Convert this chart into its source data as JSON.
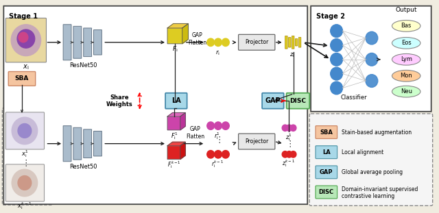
{
  "stage1_label": "Stage 1",
  "stage2_label": "Stage 2",
  "output_label": "Output",
  "classifier_label": "Classifier",
  "share_weights": "Share\nWeights",
  "resnet_label": "ResNet50",
  "gap_flatten": "GAP\nFlatten",
  "projector_label": "Projector",
  "fi_label": "$F_{\\mathrm{i}}$",
  "ri_label": "$r_{\\mathrm{i}}$",
  "zi_label": "$z_{\\mathrm{i}}$",
  "fi1_label": "$F_{\\mathrm{i}}^{1}$",
  "ri1_label": "$r_{\\mathrm{i}}^{1}$",
  "zi1_label": "$z_{\\mathrm{i}}^{1}$",
  "fikm1_label": "$F_{\\mathrm{i}}^{k-1}$",
  "rikm1_label": "$r_{\\mathrm{i}}^{k-1}$",
  "zikm1_label": "$z_{\\mathrm{i}}^{k-1}$",
  "xi_label": "$x_{\\mathrm{i}}$",
  "xi1_label": "$x_{\\mathrm{i}}^{1}$",
  "xikm1_label": "$x_{\\mathrm{i}}^{k-1}$",
  "sba_label": "SBA",
  "la_label": "LA",
  "gap_label": "GAP",
  "disc_label": "DISC",
  "output_classes": [
    "Bas",
    "Eos",
    "Lym",
    "Mon",
    "Neu"
  ],
  "class_colors": [
    "#ffffcc",
    "#ccffff",
    "#ffccff",
    "#ffcc99",
    "#ccffcc"
  ],
  "sba_color": "#f5c5a0",
  "la_color": "#a8d8e8",
  "gap_color": "#a8d8e8",
  "disc_color": "#b8e8b8",
  "bg_color": "#f0ece0",
  "node_color": "#4488cc",
  "cube_yellow_front": "#ddcc22",
  "cube_yellow_top": "#eecc44",
  "cube_yellow_side": "#ccbb11",
  "cube_purple_front": "#cc44aa",
  "cube_purple_top": "#dd66bb",
  "cube_purple_side": "#bb3399",
  "cube_red_front": "#dd2222",
  "cube_red_top": "#ee4444",
  "cube_red_side": "#cc1111",
  "dot_yellow": "#ddcc22",
  "dot_purple": "#cc44aa",
  "dot_red": "#dd2222",
  "legend_items": [
    {
      "label": "SBA",
      "color": "#f5c5a0",
      "border": "#cc8866",
      "text": "Stain-based augmentation"
    },
    {
      "label": "LA",
      "color": "#a8d8e8",
      "border": "#5599aa",
      "text": "Local alignment"
    },
    {
      "label": "GAP",
      "color": "#a8d8e8",
      "border": "#5599aa",
      "text": "Global average pooling"
    },
    {
      "label": "DISC",
      "color": "#b8e8b8",
      "border": "#55aa55",
      "text": "Domain-invariant supervised\ncontrastive learning"
    }
  ]
}
